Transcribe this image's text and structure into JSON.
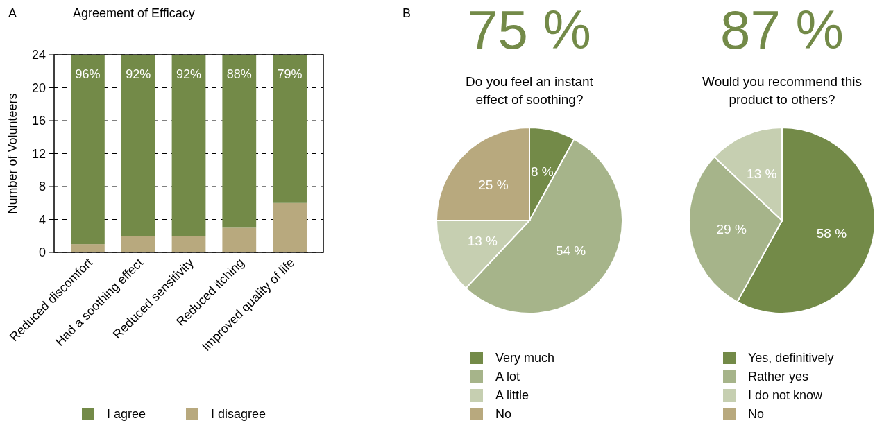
{
  "chart_data": [
    {
      "type": "bar",
      "title": "Agreement of Efficacy",
      "ylabel": "Number of Volunteers",
      "annotations": [
        "A",
        {
          "text": "96%",
          "x": "Reduced discomfort",
          "y": 24
        },
        {
          "text": "92%",
          "x": "Had a soothing effect",
          "y": 24
        },
        {
          "text": "92%",
          "x": "Reduced sensitivity",
          "y": 24
        },
        {
          "text": "88%",
          "x": "Reduced itching",
          "y": 24
        },
        {
          "text": "79%",
          "x": "Improved quality of life",
          "y": 24
        }
      ],
      "categories": [
        "Reduced discomfort",
        "Had a soothing effect",
        "Reduced sensitivity",
        "Reduced itching",
        "Improved quality of life"
      ],
      "stacked": true,
      "ylim": [
        0,
        24
      ],
      "yticks": [
        0,
        4,
        8,
        12,
        16,
        20,
        24
      ],
      "grid": "y",
      "line_style": "dashed",
      "legend": "bottom",
      "series": [
        {
          "name": "I disagree",
          "color": "#b8a97e",
          "values": [
            1,
            2,
            2,
            3,
            6
          ]
        },
        {
          "name": "I agree",
          "color": "#738a48",
          "values": [
            23,
            22,
            22,
            21,
            18
          ]
        }
      ]
    },
    {
      "type": "pie",
      "title": "75 %",
      "subtitle": "Do you feel an instant effect of soothing?",
      "annotations": [
        "B"
      ],
      "categories": [
        "Very much",
        "A lot",
        "A little",
        "No"
      ],
      "values": [
        8,
        54,
        13,
        25
      ],
      "colors": [
        "#738a48",
        "#a6b48a",
        "#c6cfb1",
        "#b8a97e"
      ],
      "value_labels": [
        "8 %",
        "54 %",
        "13 %",
        "25 %"
      ],
      "legend": "bottom"
    },
    {
      "type": "pie",
      "title": "87 %",
      "subtitle": "Would you recommend this product to others?",
      "categories": [
        "Yes, definitively",
        "Rather yes",
        "I do not know",
        "No"
      ],
      "values": [
        58,
        29,
        13,
        0
      ],
      "colors": [
        "#738a48",
        "#a6b48a",
        "#c6cfb1",
        "#b8a97e"
      ],
      "value_labels": [
        "58 %",
        "29 %",
        "13 %",
        null
      ],
      "legend": "bottom"
    }
  ]
}
